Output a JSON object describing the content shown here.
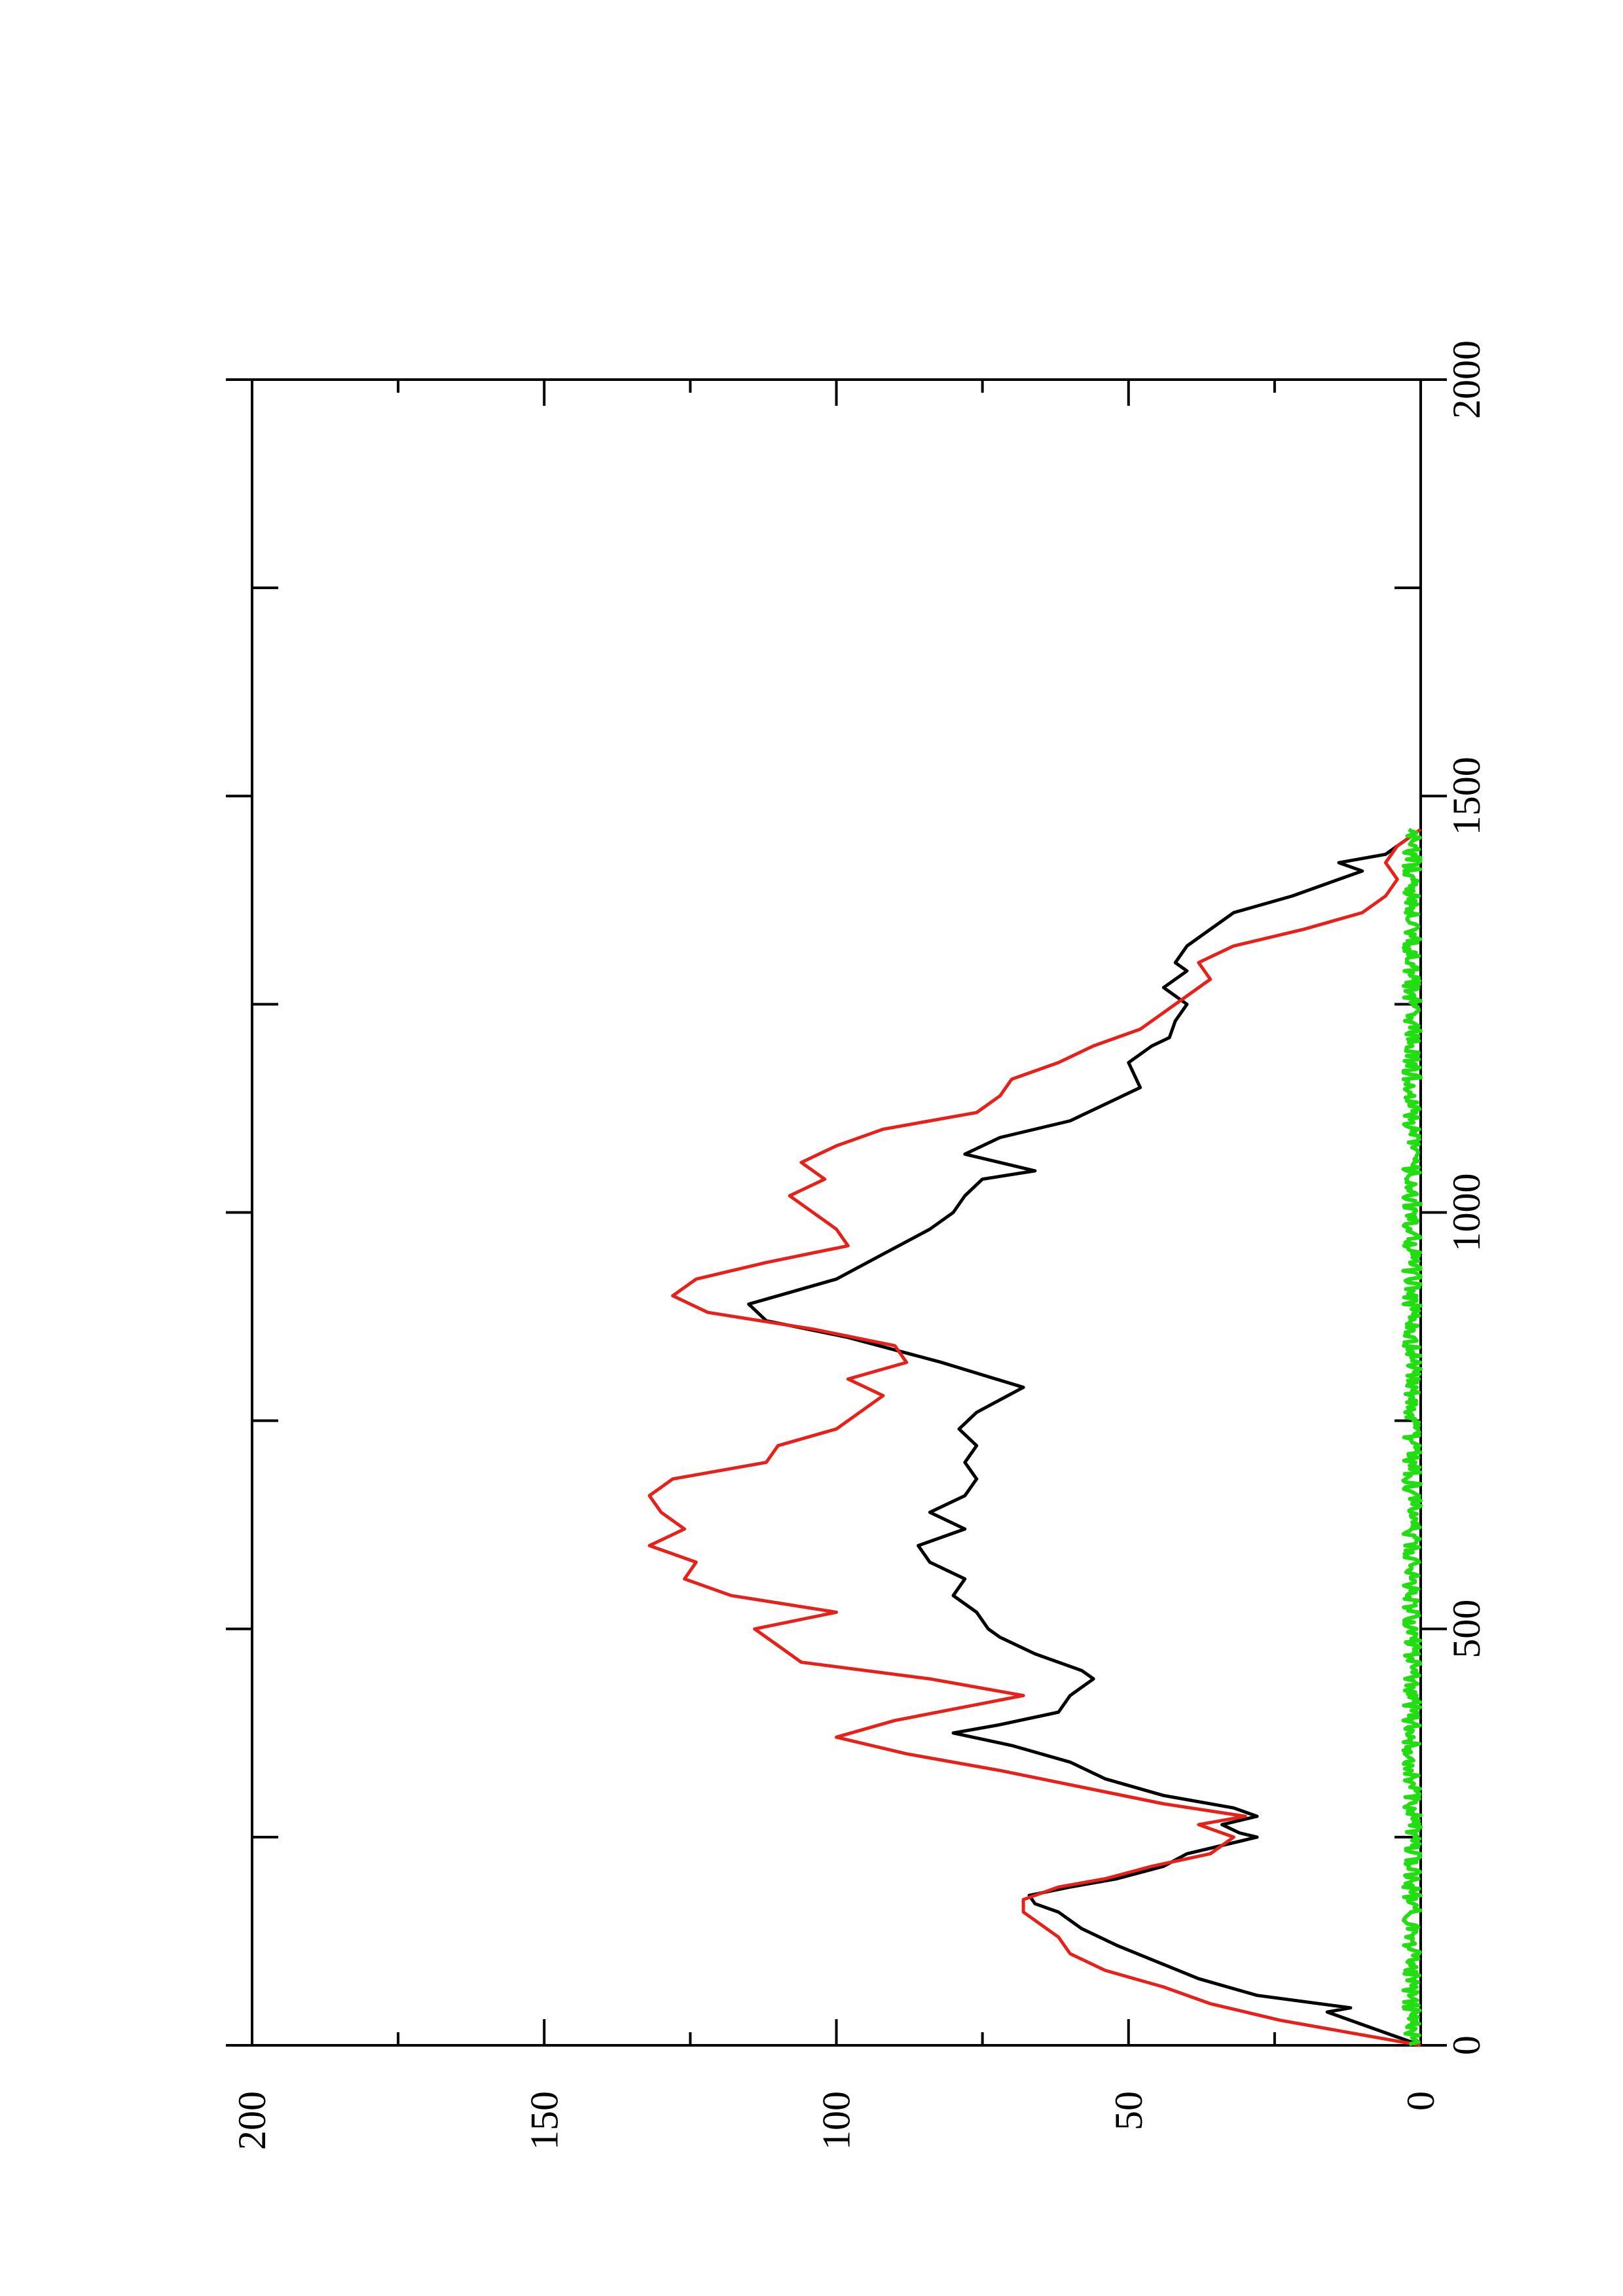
{
  "chart_data": {
    "type": "line",
    "orientation": "rotated-90-ccw",
    "title": "",
    "xlabel": "",
    "ylabel": "",
    "xlim": [
      0,
      2000
    ],
    "ylim": [
      0,
      200
    ],
    "x_ticks": [
      "0",
      "500",
      "1000",
      "1500",
      "2000"
    ],
    "y_ticks": [
      "0",
      "50",
      "100",
      "150",
      "200"
    ],
    "grid": false,
    "legend": "none",
    "series": [
      {
        "color": "#000000",
        "x": [
          0,
          20,
          40,
          45,
          60,
          80,
          100,
          120,
          140,
          160,
          170,
          180,
          190,
          200,
          215,
          230,
          250,
          255,
          265,
          275,
          285,
          300,
          320,
          340,
          360,
          375,
          385,
          400,
          420,
          440,
          450,
          470,
          490,
          500,
          520,
          540,
          560,
          580,
          600,
          620,
          640,
          660,
          680,
          700,
          720,
          740,
          760,
          790,
          820,
          850,
          870,
          890,
          900,
          920,
          950,
          980,
          1000,
          1020,
          1040,
          1050,
          1070,
          1090,
          1110,
          1130,
          1150,
          1180,
          1200,
          1210,
          1230,
          1250,
          1270,
          1290,
          1300,
          1320,
          1340,
          1360,
          1380,
          1400,
          1410,
          1420,
          1430,
          1440,
          1460
        ],
        "y": [
          0,
          8,
          16,
          12,
          28,
          38,
          45,
          52,
          58,
          62,
          66,
          67,
          60,
          52,
          44,
          40,
          28,
          31,
          34,
          28,
          32,
          44,
          54,
          60,
          70,
          80,
          72,
          62,
          60,
          56,
          58,
          66,
          72,
          74,
          76,
          80,
          78,
          84,
          86,
          78,
          84,
          78,
          76,
          78,
          76,
          79,
          76,
          68,
          82,
          98,
          112,
          115,
          110,
          100,
          92,
          84,
          80,
          78,
          75,
          66,
          78,
          72,
          60,
          54,
          48,
          50,
          46,
          43,
          42,
          40,
          44,
          40,
          42,
          40,
          36,
          32,
          22,
          14,
          10,
          14,
          6,
          4,
          0
        ]
      },
      {
        "color": "#e8201a",
        "x": [
          0,
          15,
          30,
          50,
          70,
          90,
          110,
          130,
          150,
          160,
          175,
          190,
          200,
          215,
          230,
          250,
          265,
          275,
          290,
          310,
          330,
          350,
          370,
          390,
          420,
          440,
          460,
          480,
          500,
          520,
          540,
          560,
          580,
          600,
          620,
          640,
          660,
          680,
          700,
          720,
          740,
          760,
          780,
          800,
          820,
          840,
          860,
          880,
          900,
          910,
          920,
          940,
          960,
          980,
          1000,
          1020,
          1040,
          1060,
          1080,
          1100,
          1120,
          1140,
          1160,
          1180,
          1200,
          1220,
          1240,
          1260,
          1280,
          1300,
          1320,
          1340,
          1360,
          1380,
          1400,
          1420,
          1440,
          1460
        ],
        "y": [
          0,
          12,
          24,
          36,
          44,
          54,
          60,
          62,
          66,
          68,
          68,
          62,
          54,
          46,
          36,
          32,
          38,
          30,
          44,
          58,
          72,
          88,
          100,
          90,
          68,
          84,
          106,
          110,
          114,
          100,
          118,
          126,
          124,
          132,
          126,
          130,
          132,
          128,
          112,
          110,
          100,
          96,
          92,
          98,
          88,
          90,
          104,
          122,
          128,
          126,
          124,
          112,
          98,
          100,
          104,
          108,
          102,
          106,
          100,
          92,
          76,
          72,
          70,
          62,
          56,
          48,
          44,
          40,
          36,
          38,
          32,
          20,
          10,
          6,
          4,
          6,
          4,
          0
        ]
      },
      {
        "color": "#22dd11",
        "x": [
          0,
          1460
        ],
        "y": [
          0,
          0
        ],
        "note_noise": "near-zero noisy band 0-3"
      }
    ]
  }
}
